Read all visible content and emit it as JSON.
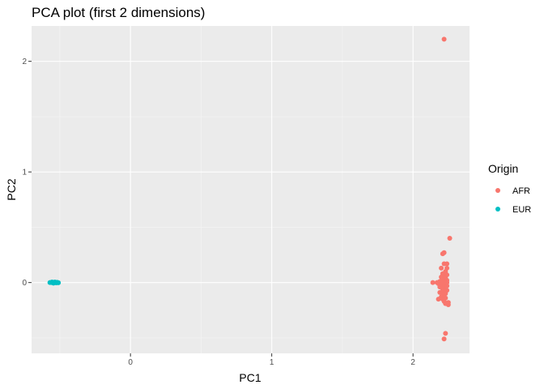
{
  "chart_data": {
    "type": "scatter",
    "title": "PCA plot (first 2 dimensions)",
    "xlabel": "PC1",
    "ylabel": "PC2",
    "xlim": [
      -0.7,
      2.4
    ],
    "ylim": [
      -0.64,
      2.32
    ],
    "x_ticks": [
      0,
      1,
      2
    ],
    "x_minor": [
      -0.5,
      0.5,
      1.5
    ],
    "y_ticks": [
      0,
      1,
      2
    ],
    "y_minor": [
      -0.5,
      0.5,
      1.5
    ],
    "grid": true,
    "legend": {
      "title": "Origin",
      "position": "right"
    },
    "series": [
      {
        "name": "AFR",
        "color": "#F8766D",
        "points": [
          [
            2.22,
            2.2
          ],
          [
            2.26,
            0.4
          ],
          [
            2.22,
            0.27
          ],
          [
            2.21,
            0.26
          ],
          [
            2.24,
            0.17
          ],
          [
            2.22,
            0.17
          ],
          [
            2.24,
            0.13
          ],
          [
            2.2,
            0.13
          ],
          [
            2.23,
            0.1
          ],
          [
            2.21,
            0.08
          ],
          [
            2.24,
            0.07
          ],
          [
            2.22,
            0.06
          ],
          [
            2.2,
            0.05
          ],
          [
            2.23,
            0.04
          ],
          [
            2.21,
            0.03
          ],
          [
            2.24,
            0.02
          ],
          [
            2.22,
            0.01
          ],
          [
            2.19,
            0.01
          ],
          [
            2.24,
            0.0
          ],
          [
            2.22,
            0.0
          ],
          [
            2.2,
            0.0
          ],
          [
            2.17,
            0.0
          ],
          [
            2.14,
            0.0
          ],
          [
            2.18,
            -0.01
          ],
          [
            2.23,
            -0.01
          ],
          [
            2.2,
            -0.02
          ],
          [
            2.24,
            -0.03
          ],
          [
            2.21,
            -0.04
          ],
          [
            2.19,
            -0.04
          ],
          [
            2.23,
            -0.05
          ],
          [
            2.21,
            -0.06
          ],
          [
            2.24,
            -0.07
          ],
          [
            2.22,
            -0.08
          ],
          [
            2.19,
            -0.09
          ],
          [
            2.23,
            -0.1
          ],
          [
            2.21,
            -0.11
          ],
          [
            2.2,
            -0.13
          ],
          [
            2.23,
            -0.14
          ],
          [
            2.21,
            -0.15
          ],
          [
            2.18,
            -0.15
          ],
          [
            2.22,
            -0.17
          ],
          [
            2.25,
            -0.18
          ],
          [
            2.23,
            -0.19
          ],
          [
            2.25,
            -0.2
          ],
          [
            2.23,
            -0.46
          ],
          [
            2.22,
            -0.51
          ]
        ]
      },
      {
        "name": "EUR",
        "color": "#00BFC4",
        "points": [
          [
            -0.57,
            0.0
          ],
          [
            -0.56,
            0.0
          ],
          [
            -0.555,
            0.005
          ],
          [
            -0.55,
            0.0
          ],
          [
            -0.545,
            -0.005
          ],
          [
            -0.54,
            0.0
          ],
          [
            -0.535,
            0.005
          ],
          [
            -0.53,
            0.0
          ],
          [
            -0.525,
            -0.003
          ],
          [
            -0.52,
            0.002
          ],
          [
            -0.515,
            0.0
          ],
          [
            -0.51,
            -0.002
          ]
        ]
      }
    ]
  }
}
